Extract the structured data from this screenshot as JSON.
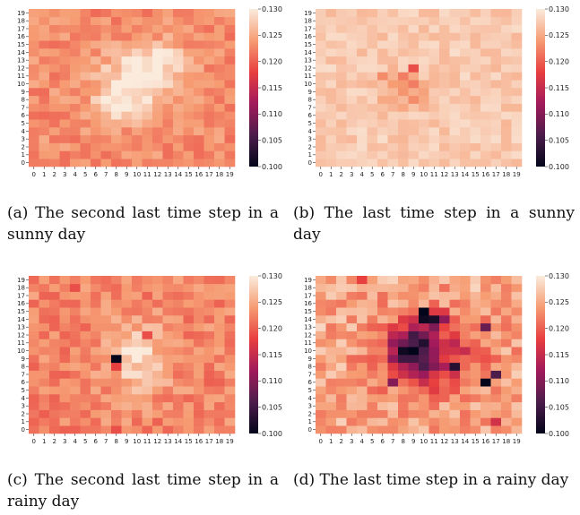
{
  "color_scale": {
    "vmin": 0.1,
    "vmax": 0.13,
    "stops": [
      "#03051a",
      "#4c1d4b",
      "#a11a5b",
      "#e83f3f",
      "#f69c73",
      "#faebdd"
    ],
    "ticks": [
      "0.100",
      "0.105",
      "0.110",
      "0.115",
      "0.120",
      "0.125",
      "0.130"
    ]
  },
  "axis_ticks": [
    "0",
    "1",
    "2",
    "3",
    "4",
    "5",
    "6",
    "7",
    "8",
    "9",
    "10",
    "11",
    "12",
    "13",
    "14",
    "15",
    "16",
    "17",
    "18",
    "19"
  ],
  "captions": {
    "a": "(a) The second last time step in a sunny day",
    "b": "(b) The last time step in a sunny day",
    "c": "(c) The second last time step in a rainy day",
    "d": "(d) The last time step in a rainy day"
  },
  "chart_data": [
    {
      "id": "a",
      "type": "heatmap",
      "title": "",
      "x": [
        "0",
        "1",
        "2",
        "3",
        "4",
        "5",
        "6",
        "7",
        "8",
        "9",
        "10",
        "11",
        "12",
        "13",
        "14",
        "15",
        "16",
        "17",
        "18",
        "19"
      ],
      "y": [
        "0",
        "1",
        "2",
        "3",
        "4",
        "5",
        "6",
        "7",
        "8",
        "9",
        "10",
        "11",
        "12",
        "13",
        "14",
        "15",
        "16",
        "17",
        "18",
        "19"
      ],
      "background": 0.123,
      "features": [
        {
          "type": "blob",
          "x": 10,
          "y": 10,
          "rx": 4.5,
          "ry": 4.8,
          "value": 0.129
        },
        {
          "type": "blob",
          "x": 12,
          "y": 13,
          "rx": 3,
          "ry": 2.5,
          "value": 0.128
        },
        {
          "type": "blob",
          "x": 8,
          "y": 8,
          "rx": 2,
          "ry": 3,
          "value": 0.128
        }
      ],
      "noise": 0.0022,
      "seed": 11
    },
    {
      "id": "b",
      "type": "heatmap",
      "title": "",
      "x": [
        "0",
        "1",
        "2",
        "3",
        "4",
        "5",
        "6",
        "7",
        "8",
        "9",
        "10",
        "11",
        "12",
        "13",
        "14",
        "15",
        "16",
        "17",
        "18",
        "19"
      ],
      "y": [
        "0",
        "1",
        "2",
        "3",
        "4",
        "5",
        "6",
        "7",
        "8",
        "9",
        "10",
        "11",
        "12",
        "13",
        "14",
        "15",
        "16",
        "17",
        "18",
        "19"
      ],
      "background": 0.1275,
      "features": [
        {
          "type": "blob",
          "x": 8,
          "y": 9,
          "rx": 3,
          "ry": 2.5,
          "value": 0.1245
        }
      ],
      "noise": 0.0015,
      "seed": 23,
      "cells": [
        [
          9,
          12,
          0.119
        ],
        [
          8,
          11,
          0.122
        ],
        [
          6,
          11,
          0.123
        ],
        [
          9,
          10,
          0.122
        ],
        [
          9,
          8,
          0.123
        ]
      ]
    },
    {
      "id": "c",
      "type": "heatmap",
      "title": "",
      "x": [
        "0",
        "1",
        "2",
        "3",
        "4",
        "5",
        "6",
        "7",
        "8",
        "9",
        "10",
        "11",
        "12",
        "13",
        "14",
        "15",
        "16",
        "17",
        "18",
        "19"
      ],
      "y": [
        "0",
        "1",
        "2",
        "3",
        "4",
        "5",
        "6",
        "7",
        "8",
        "9",
        "10",
        "11",
        "12",
        "13",
        "14",
        "15",
        "16",
        "17",
        "18",
        "19"
      ],
      "background": 0.1225,
      "features": [
        {
          "type": "blob",
          "x": 10,
          "y": 9,
          "rx": 3.5,
          "ry": 5,
          "value": 0.1285
        }
      ],
      "noise": 0.0025,
      "seed": 37,
      "cells": [
        [
          8,
          9,
          0.1
        ],
        [
          8,
          8,
          0.118
        ],
        [
          11,
          12,
          0.119
        ],
        [
          4,
          18,
          0.119
        ],
        [
          8,
          0,
          0.119
        ]
      ]
    },
    {
      "id": "d",
      "type": "heatmap",
      "title": "",
      "x": [
        "0",
        "1",
        "2",
        "3",
        "4",
        "5",
        "6",
        "7",
        "8",
        "9",
        "10",
        "11",
        "12",
        "13",
        "14",
        "15",
        "16",
        "17",
        "18",
        "19"
      ],
      "y": [
        "0",
        "1",
        "2",
        "3",
        "4",
        "5",
        "6",
        "7",
        "8",
        "9",
        "10",
        "11",
        "12",
        "13",
        "14",
        "15",
        "16",
        "17",
        "18",
        "19"
      ],
      "background": 0.125,
      "features": [
        {
          "type": "blob",
          "x": 10.5,
          "y": 9.5,
          "rx": 5.5,
          "ry": 5.5,
          "value": 0.114
        },
        {
          "type": "blob",
          "x": 9,
          "y": 10,
          "rx": 2.2,
          "ry": 3,
          "value": 0.105
        },
        {
          "type": "blob",
          "x": 11,
          "y": 14,
          "rx": 1.5,
          "ry": 1,
          "value": 0.106
        }
      ],
      "noise": 0.0035,
      "seed": 53,
      "cells": [
        [
          4,
          19,
          0.118
        ],
        [
          16,
          6,
          0.1
        ],
        [
          10,
          15,
          0.1
        ],
        [
          10,
          14,
          0.101
        ],
        [
          8,
          10,
          0.101
        ],
        [
          13,
          8,
          0.103
        ],
        [
          17,
          7,
          0.106
        ],
        [
          16,
          13,
          0.108
        ],
        [
          17,
          1,
          0.116
        ],
        [
          7,
          6,
          0.11
        ]
      ]
    }
  ]
}
